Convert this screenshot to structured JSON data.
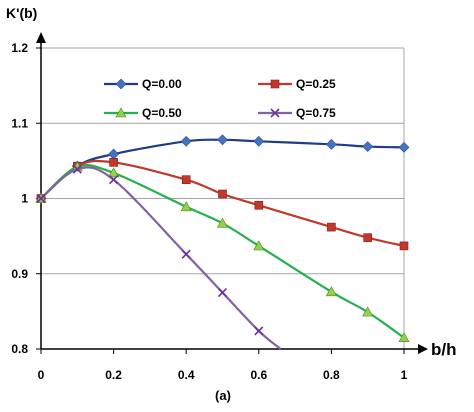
{
  "chart_data": {
    "type": "line",
    "ylabel": "K'(b)",
    "xlabel": "b/h",
    "caption": "(a)",
    "xlim": [
      0,
      1
    ],
    "ylim": [
      0.8,
      1.2
    ],
    "xticks": [
      0,
      0.2,
      0.4,
      0.6,
      0.8,
      1
    ],
    "xtick_labels": [
      "0",
      "0.2",
      "0.4",
      "0.6",
      "0.8",
      "1"
    ],
    "yticks": [
      0.8,
      0.9,
      1,
      1.1,
      1.2
    ],
    "ytick_labels": [
      "0.8",
      "0.9",
      "1",
      "1.1",
      "1.2"
    ],
    "grid": "horizontal",
    "legend": "inside-top",
    "series": [
      {
        "name": "Q=0.00",
        "color": "#1f3c88",
        "marker_color": "#4472c4",
        "marker": "diamond",
        "x": [
          0,
          0.1,
          0.2,
          0.4,
          0.5,
          0.6,
          0.8,
          0.9,
          1.0
        ],
        "y": [
          1.0,
          1.043,
          1.059,
          1.076,
          1.078,
          1.076,
          1.072,
          1.069,
          1.068
        ]
      },
      {
        "name": "Q=0.25",
        "color": "#c0392b",
        "marker_color": "#c0392b",
        "marker": "square",
        "x": [
          0,
          0.1,
          0.2,
          0.4,
          0.5,
          0.6,
          0.8,
          0.9,
          1.0
        ],
        "y": [
          1.0,
          1.043,
          1.048,
          1.025,
          1.006,
          0.991,
          0.962,
          0.948,
          0.937
        ]
      },
      {
        "name": "Q=0.50",
        "color": "#22b14c",
        "marker_color": "#92d050",
        "marker": "triangle",
        "x": [
          0,
          0.1,
          0.2,
          0.4,
          0.5,
          0.6,
          0.8,
          0.9,
          1.0
        ],
        "y": [
          1.0,
          1.042,
          1.034,
          0.989,
          0.967,
          0.937,
          0.876,
          0.849,
          0.815
        ]
      },
      {
        "name": "Q=0.75",
        "color": "#8064a2",
        "marker_color": "#7030a0",
        "marker": "x",
        "x": [
          0,
          0.1,
          0.2,
          0.4,
          0.5,
          0.6,
          0.66
        ],
        "y": [
          1.0,
          1.039,
          1.025,
          0.926,
          0.875,
          0.824,
          0.8
        ]
      }
    ]
  }
}
